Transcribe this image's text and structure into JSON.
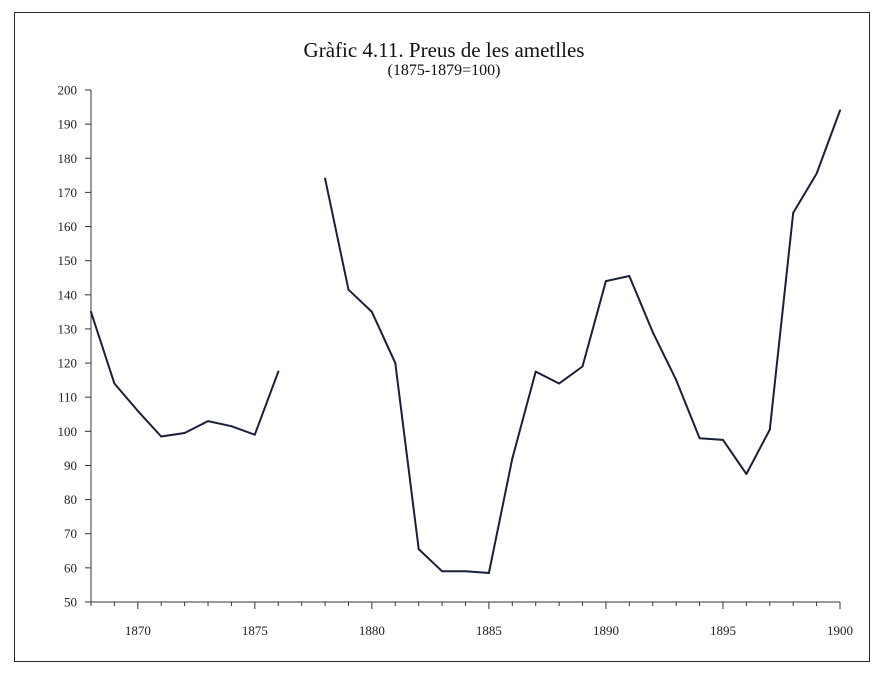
{
  "chart_data": {
    "type": "line",
    "title": "Gràfic 4.11. Preus de les ametlles",
    "subtitle": "(1875-1879=100)",
    "xlabel": "",
    "ylabel": "",
    "xlim": [
      1868,
      1900
    ],
    "ylim": [
      50,
      200
    ],
    "xticks": [
      1870,
      1875,
      1880,
      1885,
      1890,
      1895,
      1900
    ],
    "yticks": [
      50,
      60,
      70,
      80,
      90,
      100,
      110,
      120,
      130,
      140,
      150,
      160,
      170,
      180,
      190,
      200
    ],
    "grid": false,
    "color": "#1a1f3a",
    "segments": [
      {
        "x": [
          1868,
          1869,
          1870,
          1871,
          1872,
          1873,
          1874,
          1875,
          1876
        ],
        "y": [
          135,
          114,
          106,
          98.5,
          99.5,
          103,
          101.5,
          99,
          117.5
        ]
      },
      {
        "x": [
          1878,
          1879,
          1880,
          1881,
          1882,
          1883,
          1884,
          1885,
          1886,
          1887,
          1888,
          1889,
          1890,
          1891,
          1892,
          1893,
          1894,
          1895,
          1896,
          1897,
          1898,
          1899,
          1900
        ],
        "y": [
          174,
          141.5,
          135,
          120,
          65.5,
          59,
          59,
          58.5,
          92,
          117.5,
          114,
          119,
          144,
          145.5,
          129,
          115,
          98,
          97.5,
          87.5,
          100.5,
          164,
          175.5,
          194
        ]
      }
    ]
  }
}
